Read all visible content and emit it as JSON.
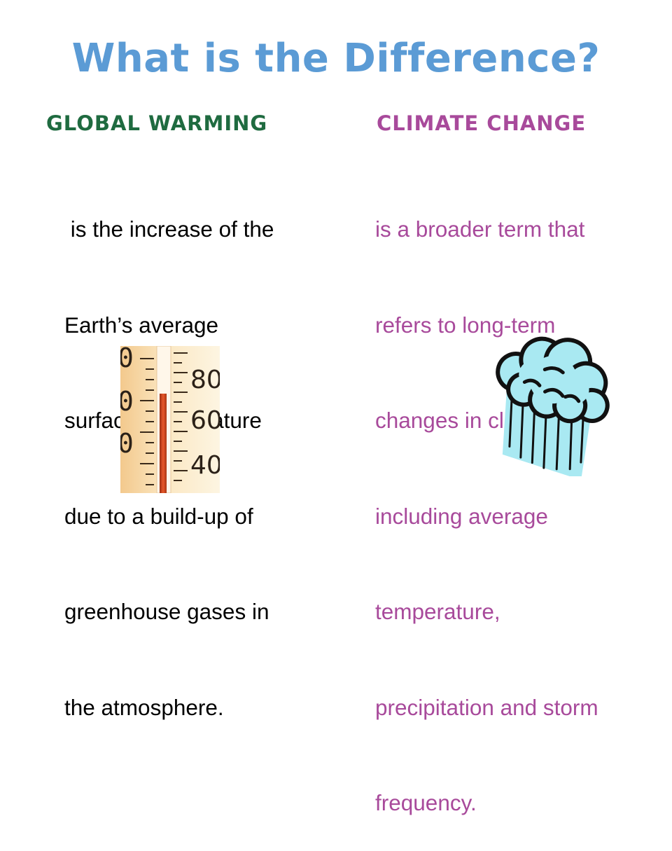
{
  "slide": {
    "title": "What is the Difference?",
    "colors": {
      "title": "#5b9bd5",
      "left": "#1f6b40",
      "right": "#a84a9b"
    }
  },
  "left": {
    "heading": "GLOBAL WARMING",
    "lines": [
      " is the increase of the",
      "Earth’s average",
      "surface temperature",
      "due to a build-up of",
      "greenhouse gases in",
      "the atmosphere."
    ]
  },
  "right": {
    "heading": "CLIMATE CHANGE",
    "lines": [
      "is a broader term that",
      "refers to long-term",
      "changes in climate,",
      "including average",
      "temperature,",
      "precipitation and storm",
      "frequency."
    ]
  },
  "thermometer": {
    "scale_labels": [
      "80",
      "60",
      "40"
    ],
    "icon": "thermometer-icon"
  },
  "cloud": {
    "icon": "rain-cloud-icon"
  }
}
